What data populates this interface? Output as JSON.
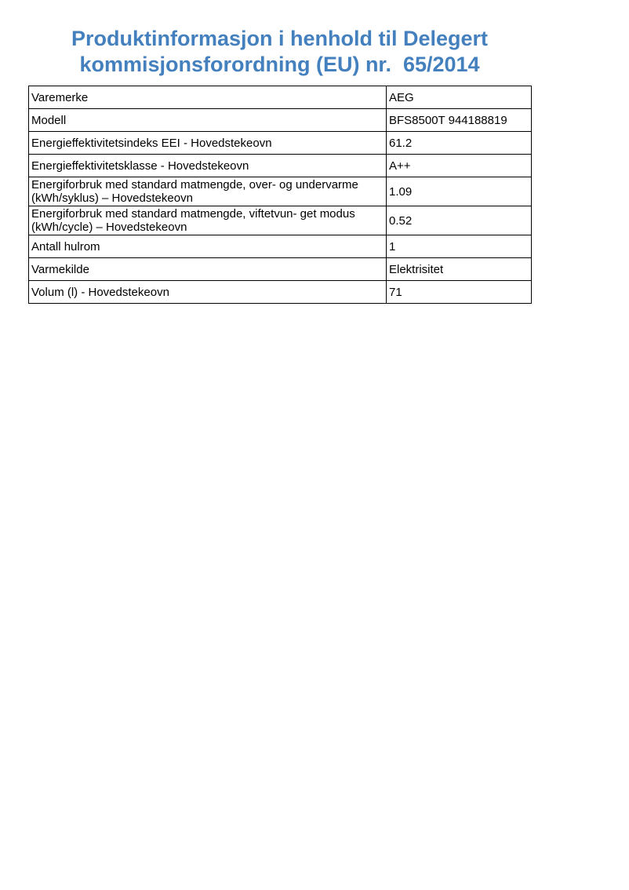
{
  "title": {
    "line1": "Produktinformasjon i henhold til Delegert",
    "line2": "kommisjonsforordning (EU) nr.  65/2014"
  },
  "colors": {
    "title_blue": "#4380BD",
    "table_border": "#000000",
    "page_background": "#ffffff"
  },
  "table": {
    "rows": [
      {
        "label": "Varemerke",
        "value": "AEG"
      },
      {
        "label": "Modell",
        "value": "BFS8500T 944188819"
      },
      {
        "label": "Energieffektivitetsindeks EEI - Hovedstekeovn",
        "value": "61.2"
      },
      {
        "label": "Energieffektivitetsklasse - Hovedstekeovn",
        "value": "A++"
      },
      {
        "label": "Energiforbruk med standard matmengde, over- og undervarme (kWh/syklus) – Hovedstekeovn",
        "value": "1.09"
      },
      {
        "label": "Energiforbruk med standard matmengde, viftetvun- get modus (kWh/cycle) – Hovedstekeovn",
        "value": "0.52"
      },
      {
        "label": "Antall hulrom",
        "value": "1"
      },
      {
        "label": "Varmekilde",
        "value": "Elektrisitet"
      },
      {
        "label": "Volum (l) - Hovedstekeovn",
        "value": "71"
      }
    ]
  }
}
